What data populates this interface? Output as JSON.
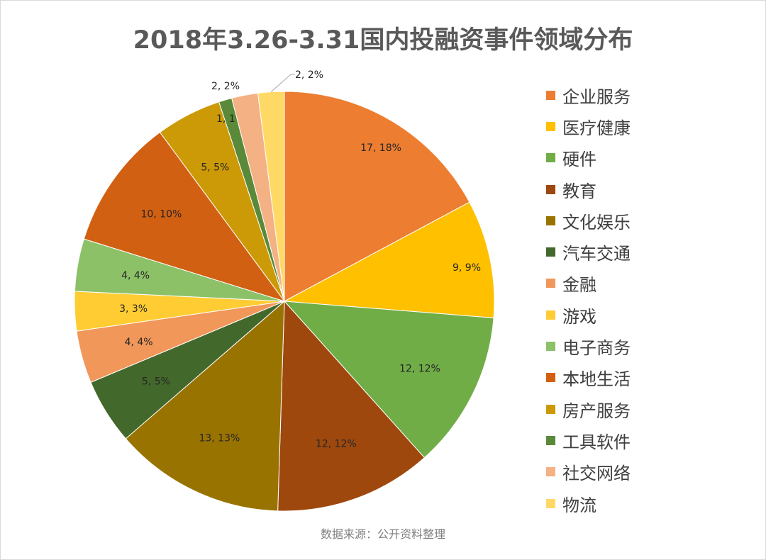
{
  "chart_data": {
    "type": "pie",
    "title": "2018年3.26-3.31国内投融资事件领域分布",
    "source": "数据来源：公开资料整理",
    "legend_position": "right",
    "slices": [
      {
        "name": "企业服务",
        "value": 17,
        "percent": "18%",
        "color": "#ED7D31"
      },
      {
        "name": "医疗健康",
        "value": 9,
        "percent": "9%",
        "color": "#FFC000"
      },
      {
        "name": "硬件",
        "value": 12,
        "percent": "12%",
        "color": "#70AD47"
      },
      {
        "name": "教育",
        "value": 12,
        "percent": "12%",
        "color": "#9E480E"
      },
      {
        "name": "文化娱乐",
        "value": 13,
        "percent": "13%",
        "color": "#997300"
      },
      {
        "name": "汽车交通",
        "value": 5,
        "percent": "5%",
        "color": "#43682B"
      },
      {
        "name": "金融",
        "value": 4,
        "percent": "4%",
        "color": "#F1975A"
      },
      {
        "name": "游戏",
        "value": 3,
        "percent": "3%",
        "color": "#FFCD33"
      },
      {
        "name": "电子商务",
        "value": 4,
        "percent": "4%",
        "color": "#8CC168"
      },
      {
        "name": "本地生活",
        "value": 10,
        "percent": "10%",
        "color": "#D26012"
      },
      {
        "name": "房产服务",
        "value": 5,
        "percent": "5%",
        "color": "#CC9A06"
      },
      {
        "name": "工具软件",
        "value": 1,
        "percent": "1%",
        "color": "#5A8A39"
      },
      {
        "name": "社交网络",
        "value": 2,
        "percent": "2%",
        "color": "#F4B183"
      },
      {
        "name": "物流",
        "value": 2,
        "percent": "2%",
        "color": "#FFD966"
      }
    ]
  }
}
